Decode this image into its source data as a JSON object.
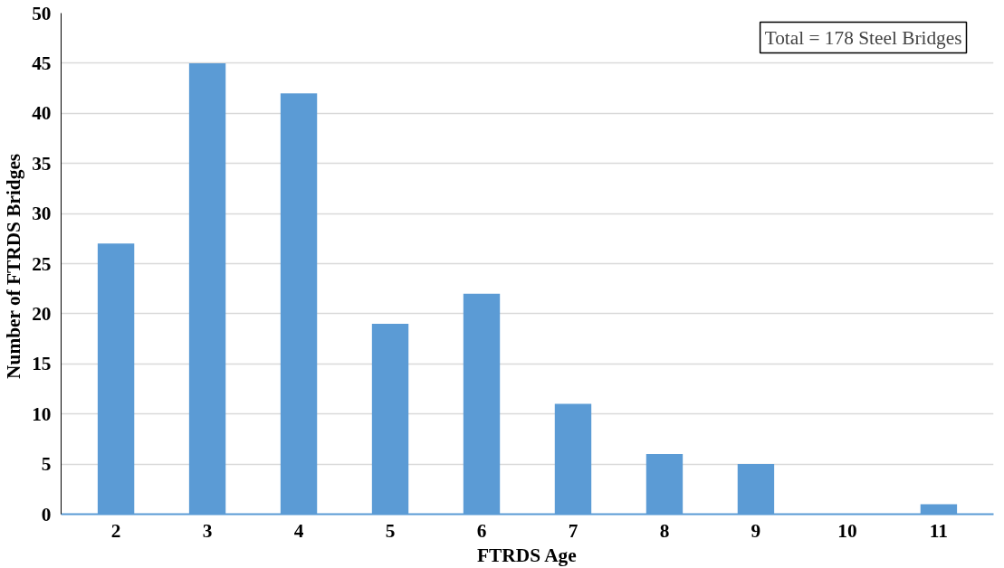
{
  "chart_data": {
    "type": "bar",
    "xlabel": "FTRDS Age",
    "ylabel": "Number of  FTRDS Bridges",
    "categories": [
      "2",
      "3",
      "4",
      "5",
      "6",
      "7",
      "8",
      "9",
      "10",
      "11"
    ],
    "values": [
      27,
      45,
      42,
      19,
      22,
      11,
      6,
      5,
      0,
      1
    ],
    "color": "#5b9bd5",
    "ylim": [
      0,
      50
    ],
    "yticks": [
      0,
      5,
      10,
      15,
      20,
      25,
      30,
      35,
      40,
      45,
      50
    ],
    "grid": "y",
    "annotations": [
      "Total = 178 Steel Bridges"
    ]
  }
}
